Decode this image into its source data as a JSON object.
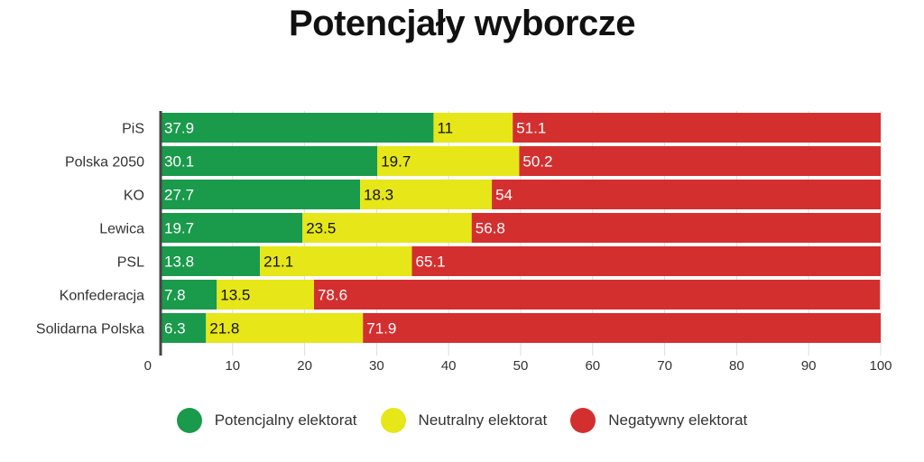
{
  "chart_data": {
    "type": "bar",
    "orientation": "horizontal",
    "stacked": true,
    "title": "Potencjały wyborcze",
    "categories": [
      "PiS",
      "Polska 2050",
      "KO",
      "Lewica",
      "PSL",
      "Konfederacja",
      "Solidarna Polska"
    ],
    "series": [
      {
        "name": "Potencjalny elektorat",
        "color": "#1a9a4b",
        "label_color": "#ffffff",
        "values": [
          37.9,
          30.1,
          27.7,
          19.7,
          13.8,
          7.8,
          6.3
        ]
      },
      {
        "name": "Neutralny elektorat",
        "color": "#e6e619",
        "label_color": "#111111",
        "values": [
          11,
          19.7,
          18.3,
          23.5,
          21.1,
          13.5,
          21.8
        ]
      },
      {
        "name": "Negatywny elektorat",
        "color": "#d42f2f",
        "label_color": "#ffffff",
        "values": [
          51.1,
          50.2,
          54,
          56.8,
          65.1,
          78.6,
          71.9
        ]
      }
    ],
    "xlim": [
      0,
      100
    ],
    "xticks": [
      "0",
      "10",
      "20",
      "30",
      "40",
      "50",
      "60",
      "70",
      "80",
      "90",
      "100"
    ],
    "grid": true,
    "legend_position": "bottom"
  }
}
